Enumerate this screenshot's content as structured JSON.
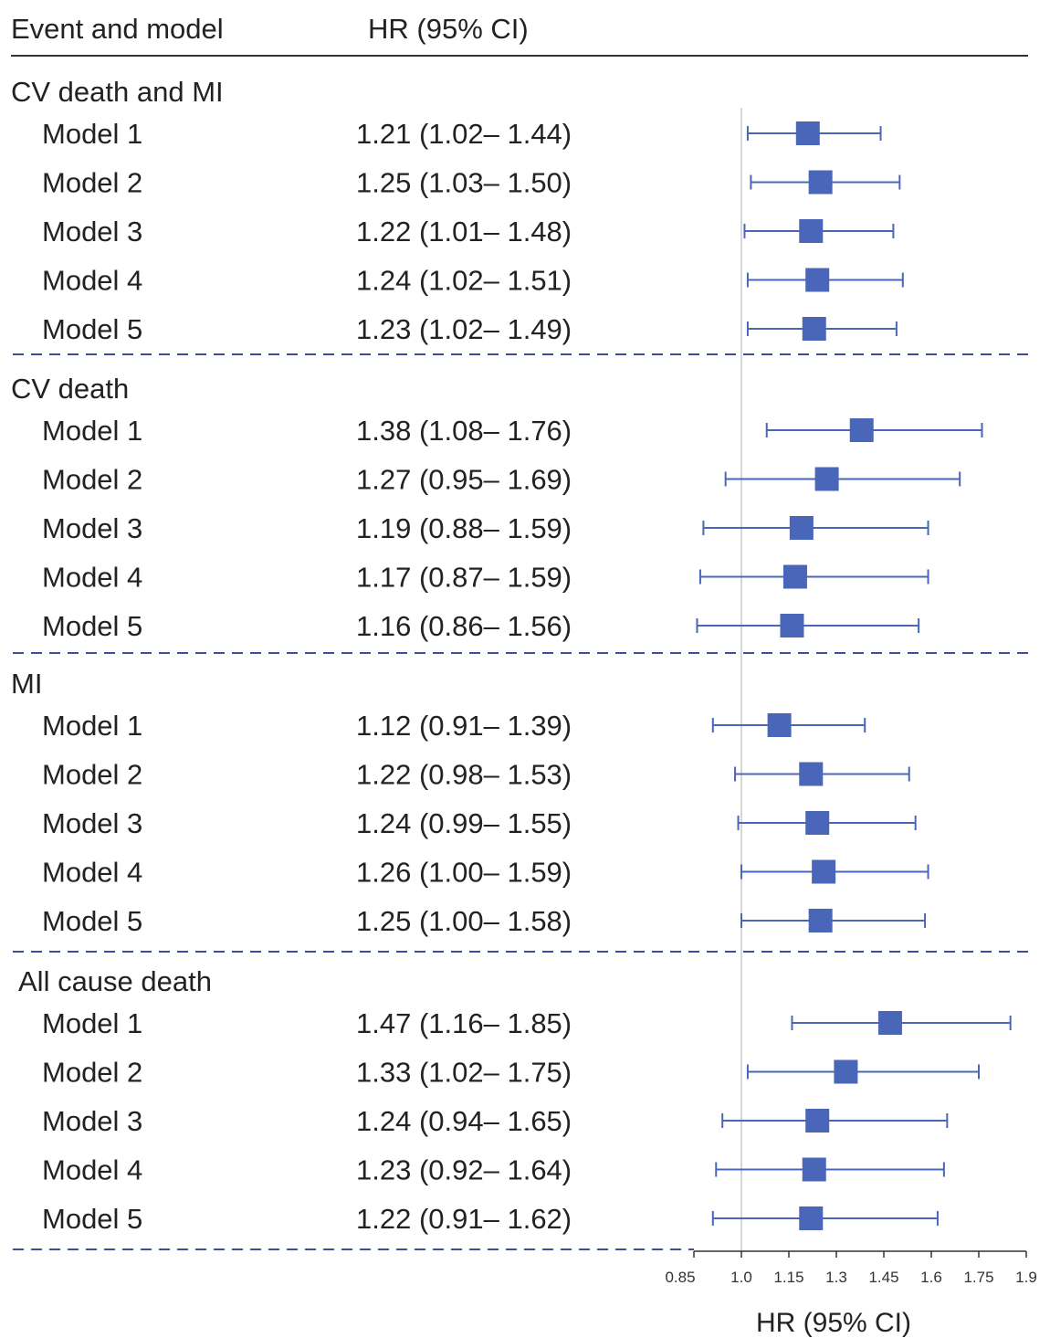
{
  "chart_data": {
    "type": "forest",
    "header": {
      "event_col": "Event and model",
      "hr_col": "HR (95% CI)"
    },
    "xlabel": "HR (95% CI)",
    "xlim": [
      0.85,
      1.9
    ],
    "xticks": [
      "0.85",
      "1.0",
      "1.15",
      "1.3",
      "1.45",
      "1.6",
      "1.75",
      "1.9"
    ],
    "reference_line": 1.0,
    "marker_color": "#4a66b8",
    "groups": [
      {
        "name": "CV death and MI",
        "rows": [
          {
            "model": "Model 1",
            "hr": 1.21,
            "lo": 1.02,
            "hi": 1.44,
            "text": "1.21 (1.02– 1.44)"
          },
          {
            "model": "Model 2",
            "hr": 1.25,
            "lo": 1.03,
            "hi": 1.5,
            "text": "1.25 (1.03– 1.50)"
          },
          {
            "model": "Model 3",
            "hr": 1.22,
            "lo": 1.01,
            "hi": 1.48,
            "text": "1.22 (1.01– 1.48)"
          },
          {
            "model": "Model 4",
            "hr": 1.24,
            "lo": 1.02,
            "hi": 1.51,
            "text": "1.24 (1.02– 1.51)"
          },
          {
            "model": "Model 5",
            "hr": 1.23,
            "lo": 1.02,
            "hi": 1.49,
            "text": "1.23 (1.02– 1.49)"
          }
        ]
      },
      {
        "name": "CV death",
        "rows": [
          {
            "model": "Model 1",
            "hr": 1.38,
            "lo": 1.08,
            "hi": 1.76,
            "text": "1.38 (1.08– 1.76)"
          },
          {
            "model": "Model 2",
            "hr": 1.27,
            "lo": 0.95,
            "hi": 1.69,
            "text": "1.27 (0.95– 1.69)"
          },
          {
            "model": "Model 3",
            "hr": 1.19,
            "lo": 0.88,
            "hi": 1.59,
            "text": "1.19 (0.88– 1.59)"
          },
          {
            "model": "Model 4",
            "hr": 1.17,
            "lo": 0.87,
            "hi": 1.59,
            "text": "1.17 (0.87– 1.59)"
          },
          {
            "model": "Model 5",
            "hr": 1.16,
            "lo": 0.86,
            "hi": 1.56,
            "text": "1.16 (0.86– 1.56)"
          }
        ]
      },
      {
        "name": "MI",
        "rows": [
          {
            "model": "Model 1",
            "hr": 1.12,
            "lo": 0.91,
            "hi": 1.39,
            "text": "1.12 (0.91– 1.39)"
          },
          {
            "model": "Model 2",
            "hr": 1.22,
            "lo": 0.98,
            "hi": 1.53,
            "text": "1.22 (0.98– 1.53)"
          },
          {
            "model": "Model 3",
            "hr": 1.24,
            "lo": 0.99,
            "hi": 1.55,
            "text": "1.24 (0.99– 1.55)"
          },
          {
            "model": "Model 4",
            "hr": 1.26,
            "lo": 1.0,
            "hi": 1.59,
            "text": "1.26 (1.00– 1.59)"
          },
          {
            "model": "Model 5",
            "hr": 1.25,
            "lo": 1.0,
            "hi": 1.58,
            "text": "1.25 (1.00– 1.58)"
          }
        ]
      },
      {
        "name": "All cause death",
        "rows": [
          {
            "model": "Model 1",
            "hr": 1.47,
            "lo": 1.16,
            "hi": 1.85,
            "text": "1.47 (1.16– 1.85)"
          },
          {
            "model": "Model 2",
            "hr": 1.33,
            "lo": 1.02,
            "hi": 1.75,
            "text": "1.33 (1.02– 1.75)"
          },
          {
            "model": "Model 3",
            "hr": 1.24,
            "lo": 0.94,
            "hi": 1.65,
            "text": "1.24 (0.94– 1.65)"
          },
          {
            "model": "Model 4",
            "hr": 1.23,
            "lo": 0.92,
            "hi": 1.64,
            "text": "1.23 (0.92– 1.64)"
          },
          {
            "model": "Model 5",
            "hr": 1.22,
            "lo": 0.91,
            "hi": 1.62,
            "text": "1.22 (0.91– 1.62)"
          }
        ]
      }
    ]
  }
}
